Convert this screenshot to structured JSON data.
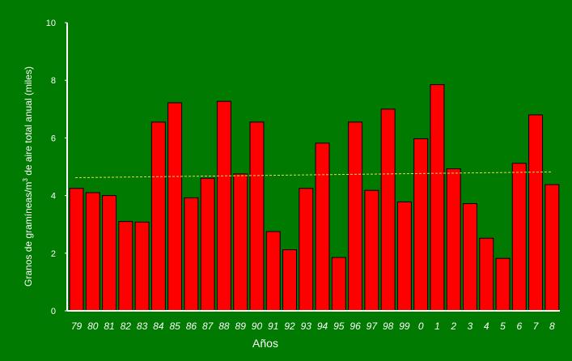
{
  "colors": {
    "background": "#007a00",
    "bar_fill": "#ff0000",
    "bar_stroke": "#000000",
    "axis": "#ffffff",
    "trend": "#e0e050"
  },
  "chart_data": {
    "type": "bar",
    "title": "",
    "xlabel": "Años",
    "ylabel_parts": {
      "before": "Granos de gramíneas/m",
      "sup": "3",
      "after": " de aire total anual (miles)"
    },
    "ylim": [
      0,
      10
    ],
    "yticks": [
      0,
      2,
      4,
      6,
      8,
      10
    ],
    "grid": false,
    "categories": [
      "79",
      "80",
      "81",
      "82",
      "83",
      "84",
      "85",
      "86",
      "87",
      "88",
      "89",
      "90",
      "91",
      "92",
      "93",
      "94",
      "95",
      "96",
      "97",
      "98",
      "99",
      "0",
      "1",
      "2",
      "3",
      "4",
      "5",
      "6",
      "7",
      "8"
    ],
    "values": [
      4.25,
      4.1,
      4.0,
      3.1,
      3.08,
      6.55,
      7.22,
      3.92,
      4.6,
      7.27,
      4.75,
      6.55,
      2.75,
      2.12,
      4.25,
      5.82,
      1.85,
      6.55,
      4.18,
      7.0,
      3.78,
      5.97,
      7.85,
      4.93,
      3.72,
      2.52,
      1.82,
      5.12,
      6.8,
      4.38
    ],
    "trend": {
      "style": "dashed",
      "start": 4.62,
      "end": 4.82
    }
  }
}
